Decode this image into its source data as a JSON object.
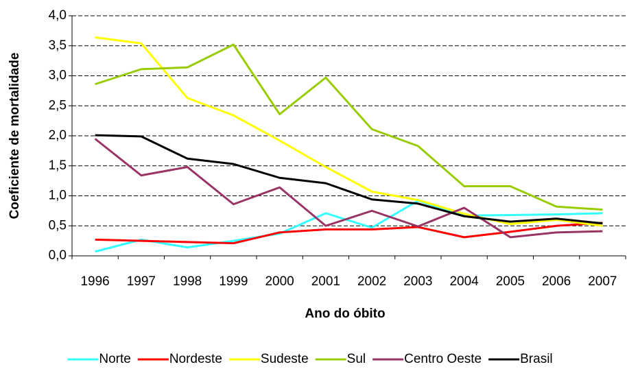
{
  "chart_data": {
    "type": "line",
    "x_label": "Ano do óbito",
    "y_label": "Coeficiente de mortalidade",
    "categories": [
      "1996",
      "1997",
      "1998",
      "1999",
      "2000",
      "2001",
      "2002",
      "2003",
      "2004",
      "2005",
      "2006",
      "2007"
    ],
    "series": [
      {
        "name": "Norte",
        "color": "#33ffff",
        "values": [
          0.07,
          0.27,
          0.14,
          0.25,
          0.37,
          0.71,
          0.47,
          0.92,
          0.67,
          0.68,
          0.69,
          0.71
        ]
      },
      {
        "name": "Nordeste",
        "color": "#ff0000",
        "values": [
          0.27,
          0.25,
          0.23,
          0.21,
          0.39,
          0.44,
          0.44,
          0.48,
          0.31,
          0.4,
          0.5,
          0.55
        ]
      },
      {
        "name": "Sudeste",
        "color": "#ffff00",
        "values": [
          3.64,
          3.54,
          2.63,
          2.34,
          1.92,
          1.48,
          1.07,
          0.93,
          0.7,
          0.53,
          0.6,
          0.5
        ]
      },
      {
        "name": "Sul",
        "color": "#99cc00",
        "values": [
          2.86,
          3.11,
          3.14,
          3.52,
          2.36,
          2.97,
          2.11,
          1.83,
          1.16,
          1.16,
          0.82,
          0.77
        ]
      },
      {
        "name": "Centro Oeste",
        "color": "#993366",
        "values": [
          1.95,
          1.34,
          1.48,
          0.86,
          1.14,
          0.5,
          0.75,
          0.49,
          0.8,
          0.31,
          0.39,
          0.41
        ]
      },
      {
        "name": "Brasil",
        "color": "#000000",
        "values": [
          2.01,
          1.99,
          1.62,
          1.53,
          1.3,
          1.21,
          0.94,
          0.87,
          0.66,
          0.57,
          0.62,
          0.54
        ]
      }
    ],
    "ylim": [
      0,
      4
    ],
    "yticks": [
      {
        "value": 0,
        "label": "0,0"
      },
      {
        "value": 0.5,
        "label": "0,5"
      },
      {
        "value": 1,
        "label": "1,0"
      },
      {
        "value": 1.5,
        "label": "1,5"
      },
      {
        "value": 2,
        "label": "2,0"
      },
      {
        "value": 2.5,
        "label": "2,5"
      },
      {
        "value": 3,
        "label": "3,0"
      },
      {
        "value": 3.5,
        "label": "3,5"
      },
      {
        "value": 4,
        "label": "4,0"
      }
    ],
    "grid": true,
    "legend": "bottom"
  }
}
